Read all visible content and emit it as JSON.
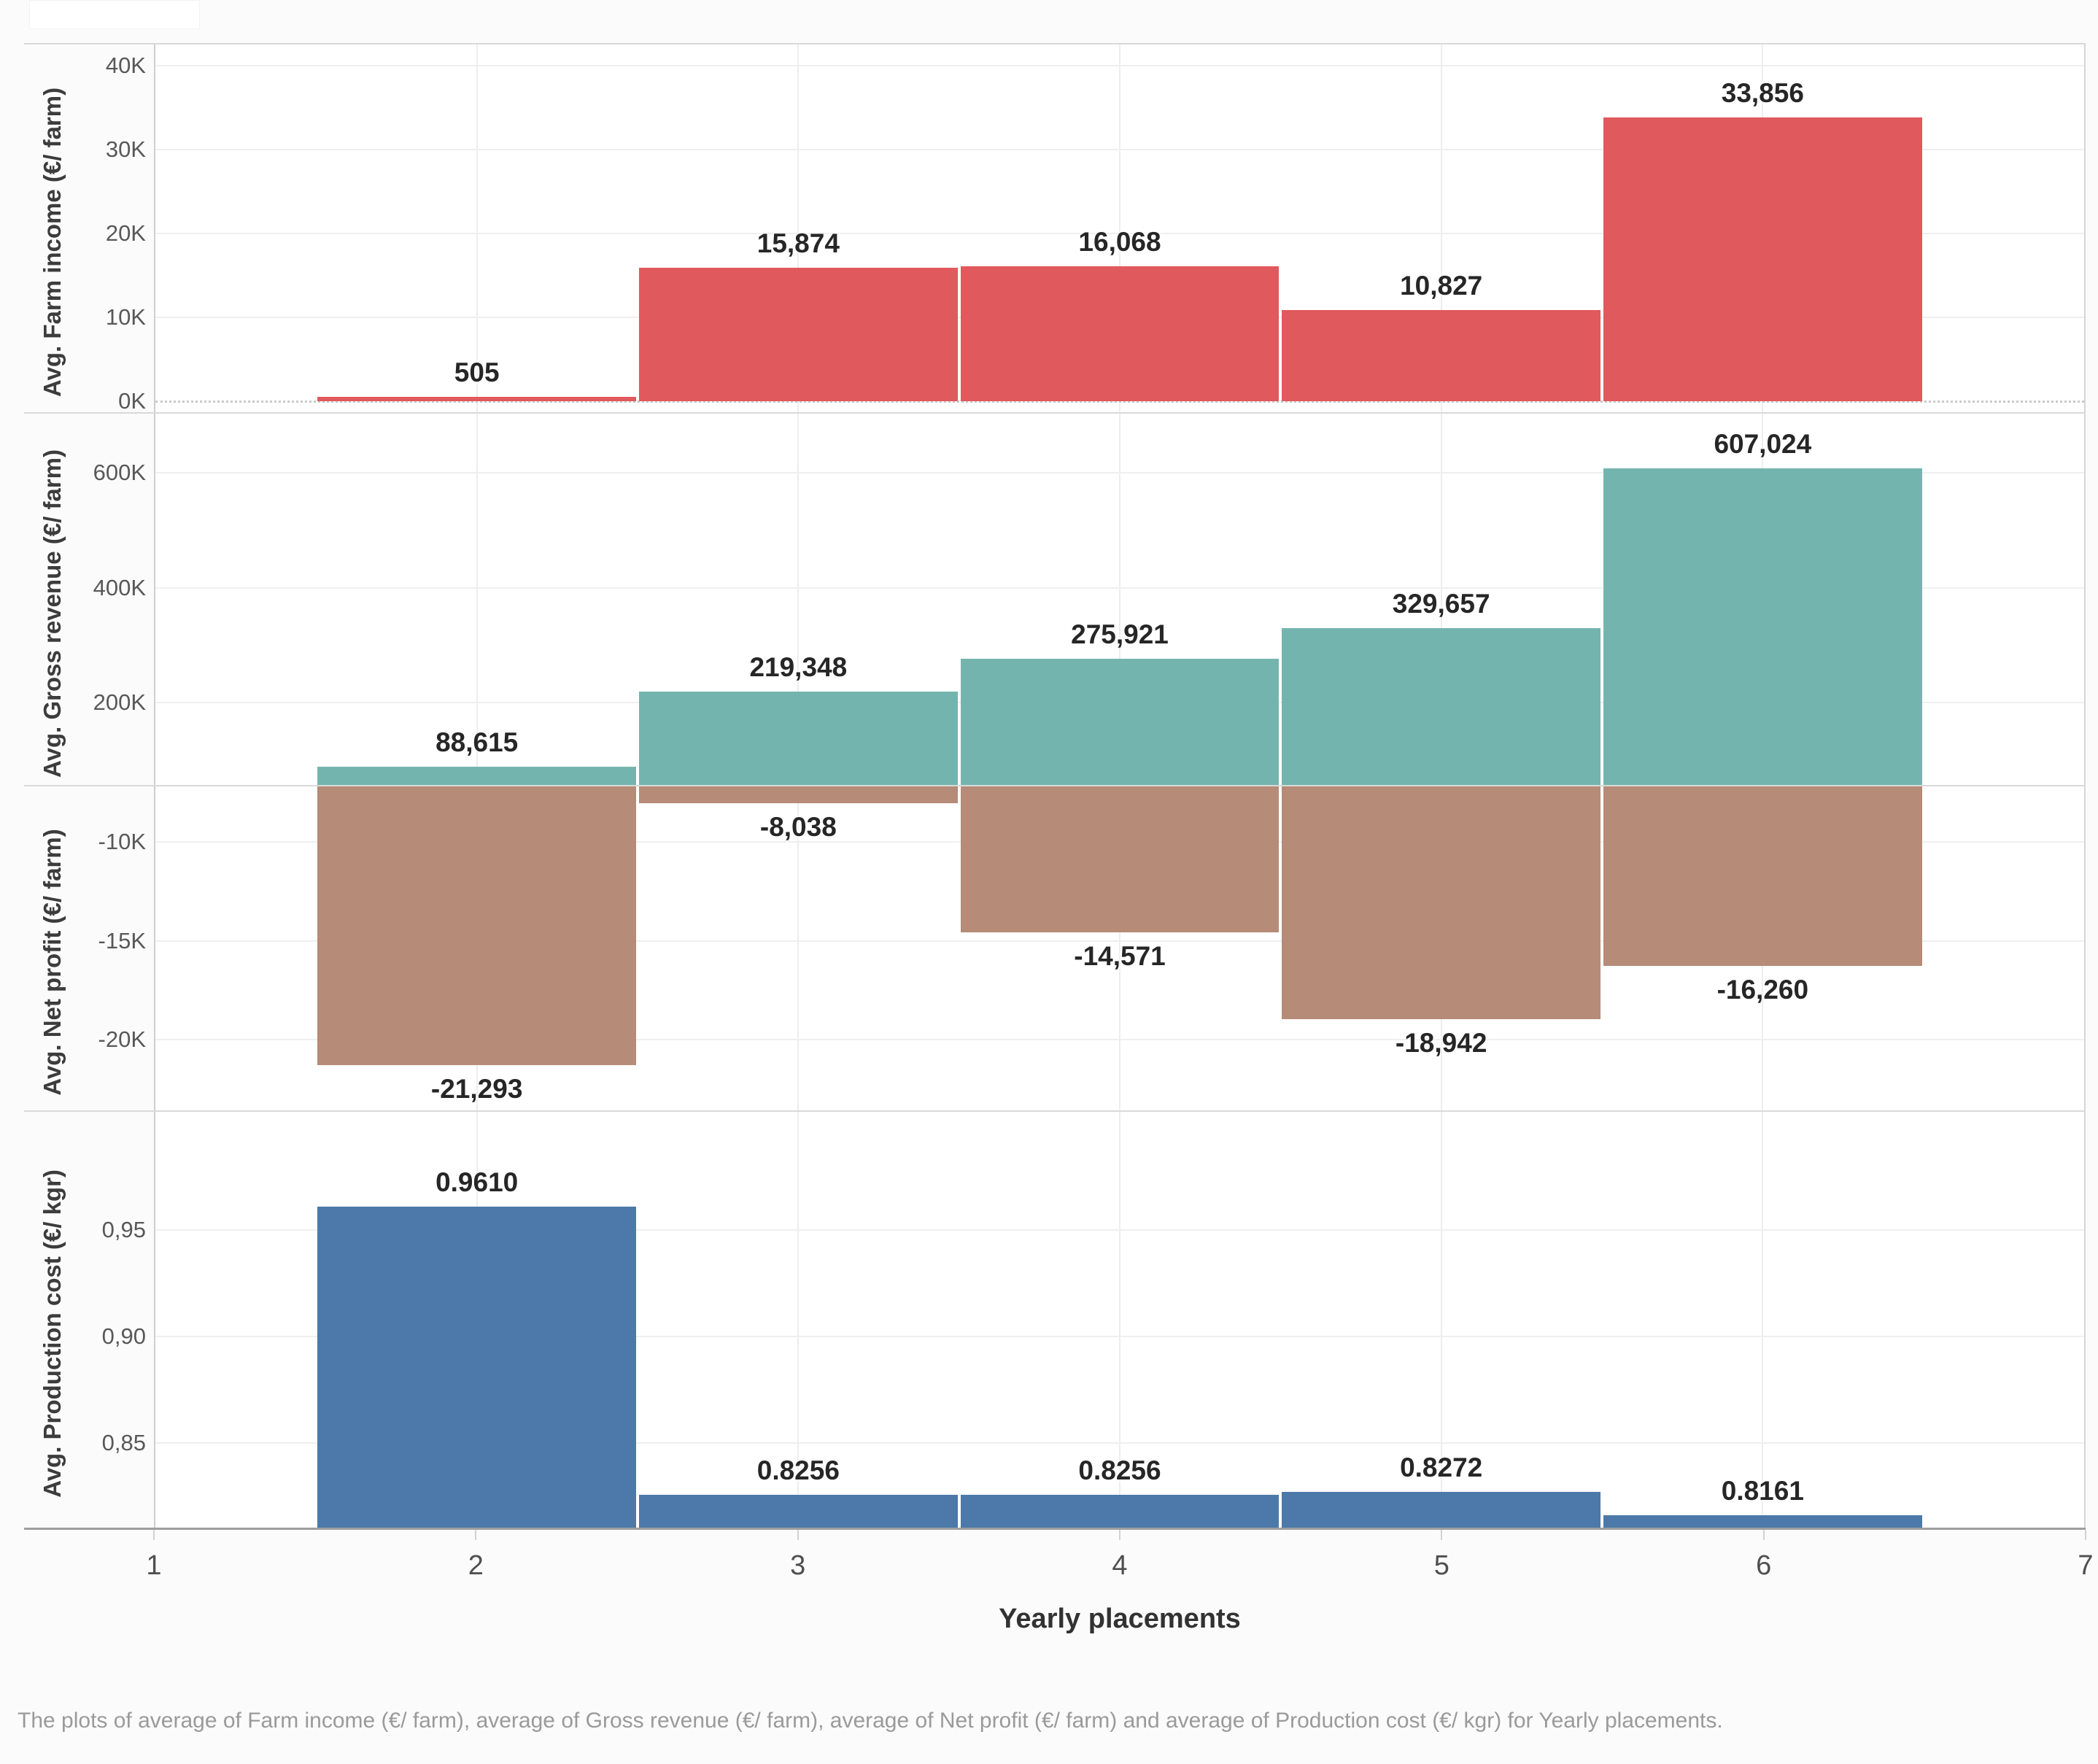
{
  "chart_data": {
    "type": "bar",
    "layout": "vertical-small-multiples",
    "xlabel": "Yearly placements",
    "x_range": [
      1,
      7
    ],
    "x_ticks": [
      "1",
      "2",
      "3",
      "4",
      "5",
      "6",
      "7"
    ],
    "categories": [
      2,
      3,
      4,
      5,
      6
    ],
    "grid": true,
    "panels": [
      {
        "id": "farm-income",
        "ylabel": "Avg. Farm income (€/ farm)",
        "color": "#E0595C",
        "values": [
          505,
          15874,
          16068,
          10827,
          33856
        ],
        "value_labels": [
          "505",
          "15,874",
          "16,068",
          "10,827",
          "33,856"
        ],
        "ylim": [
          -1400,
          42600
        ],
        "ticks": [
          {
            "v": 0,
            "label": "0K",
            "dotted": true
          },
          {
            "v": 10000,
            "label": "10K"
          },
          {
            "v": 20000,
            "label": "20K"
          },
          {
            "v": 30000,
            "label": "30K"
          },
          {
            "v": 40000,
            "label": "40K"
          }
        ]
      },
      {
        "id": "gross-revenue",
        "ylabel": "Avg. Gross revenue (€/ farm)",
        "color": "#73B5AE",
        "values": [
          88615,
          219348,
          275921,
          329657,
          607024
        ],
        "value_labels": [
          "88,615",
          "219,348",
          "275,921",
          "329,657",
          "607,024"
        ],
        "ylim": [
          55800,
          704000
        ],
        "ticks": [
          {
            "v": 200000,
            "label": "200K"
          },
          {
            "v": 400000,
            "label": "400K"
          },
          {
            "v": 600000,
            "label": "600K"
          }
        ]
      },
      {
        "id": "net-profit",
        "ylabel": "Avg. Net profit (€/ farm)",
        "color": "#B68B77",
        "values": [
          -21293,
          -8038,
          -14571,
          -18942,
          -16260
        ],
        "value_labels": [
          "-21,293",
          "-8,038",
          "-14,571",
          "-18,942",
          "-16,260"
        ],
        "ylim": [
          -23600,
          -7160
        ],
        "ticks": [
          {
            "v": -10000,
            "label": "-10K"
          },
          {
            "v": -15000,
            "label": "-15K"
          },
          {
            "v": -20000,
            "label": "-20K"
          }
        ]
      },
      {
        "id": "production-cost",
        "ylabel": "Avg. Production cost (€/ kgr)",
        "color": "#4C79A9",
        "values": [
          0.961,
          0.8256,
          0.8256,
          0.8272,
          0.8161
        ],
        "value_labels": [
          "0.9610",
          "0.8256",
          "0.8256",
          "0.8272",
          "0.8161"
        ],
        "ylim": [
          0.81,
          1.006
        ],
        "ticks": [
          {
            "v": 0.85,
            "label": "0,85"
          },
          {
            "v": 0.9,
            "label": "0,90"
          },
          {
            "v": 0.95,
            "label": "0,95"
          }
        ]
      }
    ],
    "caption": "The plots of average of Farm income (€/ farm), average of Gross revenue (€/ farm), average of Net profit (€/ farm) and average of Production cost (€/ kgr) for Yearly placements."
  }
}
